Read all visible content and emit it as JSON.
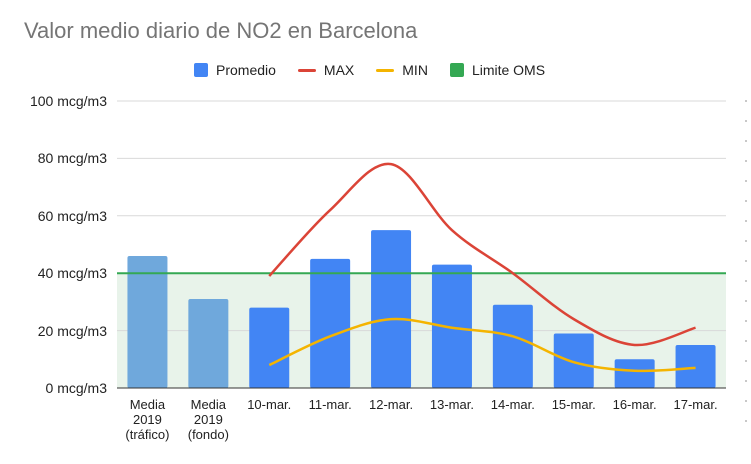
{
  "chart_data": {
    "type": "bar",
    "title": "Valor medio diario de NO2 en Barcelona",
    "categories": [
      "Media 2019 (tráfico)",
      "Media 2019 (fondo)",
      "10-mar.",
      "11-mar.",
      "12-mar.",
      "13-mar.",
      "14-mar.",
      "15-mar.",
      "16-mar.",
      "17-mar."
    ],
    "category_lines": [
      [
        "Media",
        "2019",
        "(tráfico)"
      ],
      [
        "Media",
        "2019",
        "(fondo)"
      ],
      [
        "10-mar."
      ],
      [
        "11-mar."
      ],
      [
        "12-mar."
      ],
      [
        "13-mar."
      ],
      [
        "14-mar."
      ],
      [
        "15-mar."
      ],
      [
        "16-mar."
      ],
      [
        "17-mar."
      ]
    ],
    "series": [
      {
        "name": "Promedio",
        "kind": "bar",
        "color": "#4285f4",
        "highlight_color": "#6fa8dc",
        "values": [
          46,
          31,
          28,
          45,
          55,
          43,
          29,
          19,
          10,
          15
        ]
      },
      {
        "name": "MAX",
        "kind": "line",
        "color": "#db4437",
        "values": [
          null,
          null,
          39,
          62,
          78,
          55,
          40,
          24,
          15,
          21
        ]
      },
      {
        "name": "MIN",
        "kind": "line",
        "color": "#f4b400",
        "values": [
          null,
          null,
          8,
          18,
          24,
          21,
          18,
          9,
          6,
          7
        ]
      },
      {
        "name": "Limite OMS",
        "kind": "threshold",
        "color": "#34a853",
        "fill": "#e8f3ea",
        "value": 40
      }
    ],
    "y_ticks": [
      "0 mcg/m3",
      "20 mcg/m3",
      "40 mcg/m3",
      "60 mcg/m3",
      "80 mcg/m3",
      "100 mcg/m3"
    ],
    "y_tick_values": [
      0,
      20,
      40,
      60,
      80,
      100
    ],
    "ylim": [
      0,
      100
    ],
    "grid": true,
    "legend_position": "top"
  }
}
